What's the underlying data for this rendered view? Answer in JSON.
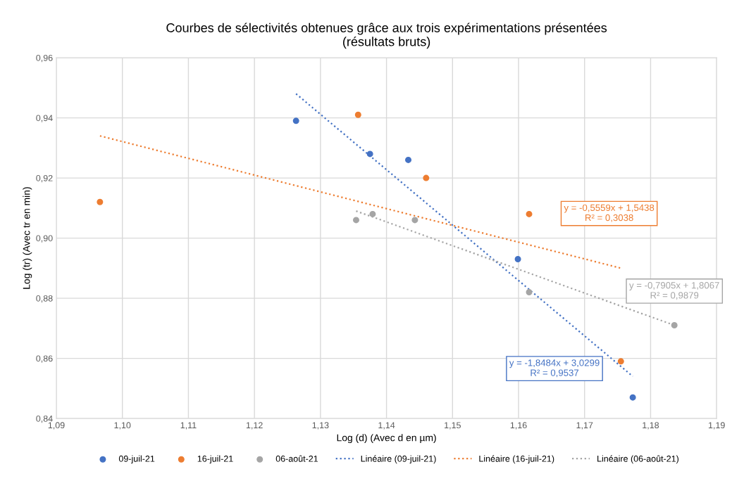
{
  "chart_data": {
    "type": "scatter",
    "title": "Courbes de sélectivités obtenues grâce aux trois expérimentations présentées\n(résultats bruts)",
    "xlabel": "Log (d) (Avec d en µm)",
    "ylabel": "Log (tr) (Avec tr en min)",
    "marker": "circle",
    "grid": true,
    "legend": "bottom",
    "xlim": [
      1.09,
      1.19
    ],
    "ylim": [
      0.84,
      0.96
    ],
    "xticks": [
      {
        "value": 1.09,
        "label": "1,09"
      },
      {
        "value": 1.1,
        "label": "1,10"
      },
      {
        "value": 1.11,
        "label": "1,11"
      },
      {
        "value": 1.12,
        "label": "1,12"
      },
      {
        "value": 1.13,
        "label": "1,13"
      },
      {
        "value": 1.14,
        "label": "1,14"
      },
      {
        "value": 1.15,
        "label": "1,15"
      },
      {
        "value": 1.16,
        "label": "1,16"
      },
      {
        "value": 1.17,
        "label": "1,17"
      },
      {
        "value": 1.18,
        "label": "1,18"
      },
      {
        "value": 1.19,
        "label": "1,19"
      }
    ],
    "yticks": [
      {
        "value": 0.84,
        "label": "0,84"
      },
      {
        "value": 0.86,
        "label": "0,86"
      },
      {
        "value": 0.88,
        "label": "0,88"
      },
      {
        "value": 0.9,
        "label": "0,90"
      },
      {
        "value": 0.92,
        "label": "0,92"
      },
      {
        "value": 0.94,
        "label": "0,94"
      },
      {
        "value": 0.96,
        "label": "0,96"
      }
    ],
    "series": [
      {
        "name": "09-juil-21",
        "color": "#4472c4",
        "x": [
          1.1263,
          1.1375,
          1.1433,
          1.1599,
          1.1773
        ],
        "values": [
          0.939,
          0.928,
          0.926,
          0.893,
          0.847
        ]
      },
      {
        "name": "16-juil-21",
        "color": "#ed7d31",
        "x": [
          1.0966,
          1.1357,
          1.146,
          1.1616,
          1.1755
        ],
        "values": [
          0.912,
          0.941,
          0.92,
          0.908,
          0.859
        ]
      },
      {
        "name": "06-août-21",
        "color": "#a5a5a5",
        "x": [
          1.1354,
          1.1379,
          1.1443,
          1.1616,
          1.1836
        ],
        "values": [
          0.906,
          0.908,
          0.906,
          0.882,
          0.871
        ]
      },
      {
        "name": "Linéaire (09-juil-21)",
        "type": "line",
        "line_style": "dotted",
        "marker": "none",
        "color": "#4472c4",
        "x": [
          1.1263,
          1.1773
        ],
        "values": [
          0.948,
          0.854
        ]
      },
      {
        "name": "Linéaire (16-juil-21)",
        "type": "line",
        "line_style": "dotted",
        "marker": "none",
        "color": "#ed7d31",
        "x": [
          1.0966,
          1.1755
        ],
        "values": [
          0.934,
          0.89
        ]
      },
      {
        "name": "Linéaire (06-août-21)",
        "type": "line",
        "line_style": "dotted",
        "marker": "none",
        "color": "#a5a5a5",
        "x": [
          1.1354,
          1.1836
        ],
        "values": [
          0.909,
          0.871
        ]
      }
    ],
    "annotations": [
      "y = -1,8484x + 3,0299\nR² = 0,9537",
      "y = -0,5559x + 1,5438\nR² = 0,3038",
      "y = -0,7905x + 1,8067\nR² = 0,9879"
    ]
  }
}
